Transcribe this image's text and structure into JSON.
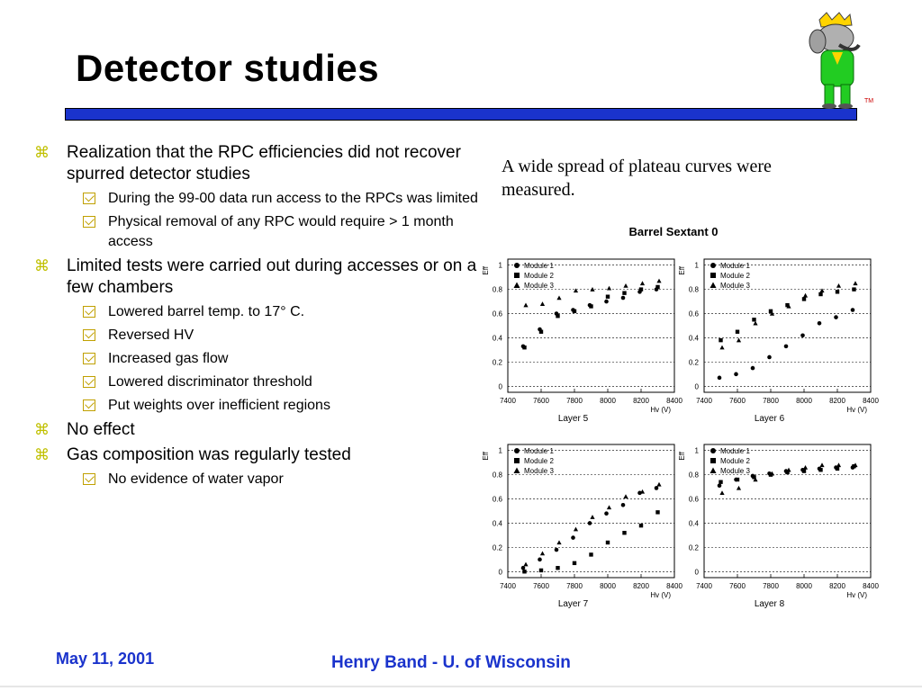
{
  "slide": {
    "title": "Detector studies",
    "caption": "A wide spread of  plateau curves were measured.",
    "footer_date": "May 11, 2001",
    "footer_author": "Henry Band -  U. of Wisconsin",
    "bullet_icon": "z-bullet-icon",
    "sub_bullet_icon": "checkbox-icon",
    "mascot_icon": "babar-elephant-icon"
  },
  "bullets": [
    {
      "text": "Realization that the RPC efficiencies did not recover spurred detector studies",
      "subs": [
        "During the 99-00 data run access to the RPCs was limited",
        "Physical removal of any RPC would require > 1 month access"
      ]
    },
    {
      "text": "Limited tests were carried out during accesses or on a few chambers",
      "subs": [
        "Lowered barrel temp. to 17° C.",
        "Reversed HV",
        "Increased gas flow",
        "Lowered discriminator threshold",
        "Put weights over inefficient regions"
      ]
    },
    {
      "text": "No effect",
      "subs": []
    },
    {
      "text": "Gas composition was regularly tested",
      "subs": [
        "No evidence of water vapor"
      ]
    }
  ],
  "chart_data": {
    "title": "Barrel Sextant 0",
    "type": "scatter",
    "panels": [
      {
        "xlabel": "Layer 5",
        "xunit": "Hv (V)",
        "ylabel": "Eff",
        "xlim": [
          7400,
          8400
        ],
        "ylim": [
          -0.05,
          1.05
        ],
        "x_ticks": [
          "7400",
          "7600",
          "7800",
          "8000",
          "8200",
          "8400"
        ],
        "y_ticks": [
          "0",
          "0.2",
          "0.4",
          "0.6",
          "0.8",
          "1"
        ],
        "series": [
          {
            "name": "Module 1",
            "marker": "circle",
            "x": [
              7500,
              7600,
              7700,
              7800,
              7900,
              8000,
              8100,
              8200,
              8300
            ],
            "y": [
              0.33,
              0.47,
              0.6,
              0.63,
              0.67,
              0.7,
              0.73,
              0.78,
              0.8
            ]
          },
          {
            "name": "Module 2",
            "marker": "square",
            "x": [
              7500,
              7600,
              7700,
              7800,
              7900,
              8000,
              8100,
              8200,
              8300
            ],
            "y": [
              0.32,
              0.45,
              0.58,
              0.62,
              0.66,
              0.74,
              0.77,
              0.8,
              0.82
            ]
          },
          {
            "name": "Module 3",
            "marker": "triangle",
            "x": [
              7500,
              7600,
              7700,
              7800,
              7900,
              8000,
              8100,
              8200,
              8300
            ],
            "y": [
              0.67,
              0.68,
              0.73,
              0.79,
              0.8,
              0.81,
              0.83,
              0.85,
              0.87
            ]
          }
        ]
      },
      {
        "xlabel": "Layer 6",
        "xunit": "Hv (V)",
        "ylabel": "Eff",
        "xlim": [
          7400,
          8400
        ],
        "ylim": [
          -0.05,
          1.05
        ],
        "x_ticks": [
          "7400",
          "7600",
          "7800",
          "8000",
          "8200",
          "8400"
        ],
        "y_ticks": [
          "0",
          "0.2",
          "0.4",
          "0.6",
          "0.8",
          "1"
        ],
        "series": [
          {
            "name": "Module 1",
            "marker": "circle",
            "x": [
              7500,
              7600,
              7700,
              7800,
              7900,
              8000,
              8100,
              8200,
              8300
            ],
            "y": [
              0.07,
              0.1,
              0.15,
              0.24,
              0.33,
              0.42,
              0.52,
              0.57,
              0.63
            ]
          },
          {
            "name": "Module 2",
            "marker": "square",
            "x": [
              7500,
              7600,
              7700,
              7800,
              7900,
              8000,
              8100,
              8200,
              8300
            ],
            "y": [
              0.38,
              0.45,
              0.55,
              0.62,
              0.67,
              0.72,
              0.76,
              0.78,
              0.8
            ]
          },
          {
            "name": "Module 3",
            "marker": "triangle",
            "x": [
              7500,
              7600,
              7700,
              7800,
              7900,
              8000,
              8100,
              8200,
              8300
            ],
            "y": [
              0.32,
              0.38,
              0.52,
              0.6,
              0.66,
              0.75,
              0.79,
              0.83,
              0.85
            ]
          }
        ]
      },
      {
        "xlabel": "Layer 7",
        "xunit": "Hv (V)",
        "ylabel": "Eff",
        "xlim": [
          7400,
          8400
        ],
        "ylim": [
          -0.05,
          1.05
        ],
        "x_ticks": [
          "7400",
          "7600",
          "7800",
          "8000",
          "8200",
          "8400"
        ],
        "y_ticks": [
          "0",
          "0.2",
          "0.4",
          "0.6",
          "0.8",
          "1"
        ],
        "series": [
          {
            "name": "Module 1",
            "marker": "circle",
            "x": [
              7500,
              7600,
              7700,
              7800,
              7900,
              8000,
              8100,
              8200,
              8300
            ],
            "y": [
              0.03,
              0.1,
              0.18,
              0.28,
              0.4,
              0.48,
              0.55,
              0.65,
              0.69
            ]
          },
          {
            "name": "Module 2",
            "marker": "square",
            "x": [
              7500,
              7600,
              7700,
              7800,
              7900,
              8000,
              8100,
              8200,
              8300
            ],
            "y": [
              0.0,
              0.01,
              0.03,
              0.07,
              0.14,
              0.24,
              0.32,
              0.38,
              0.49
            ]
          },
          {
            "name": "Module 3",
            "marker": "triangle",
            "x": [
              7500,
              7600,
              7700,
              7800,
              7900,
              8000,
              8100,
              8200,
              8300
            ],
            "y": [
              0.06,
              0.15,
              0.24,
              0.35,
              0.45,
              0.53,
              0.62,
              0.66,
              0.72
            ]
          }
        ]
      },
      {
        "xlabel": "Layer 8",
        "xunit": "Hv (V)",
        "ylabel": "Eff",
        "xlim": [
          7400,
          8400
        ],
        "ylim": [
          -0.05,
          1.05
        ],
        "x_ticks": [
          "7400",
          "7600",
          "7800",
          "8000",
          "8200",
          "8400"
        ],
        "y_ticks": [
          "0",
          "0.2",
          "0.4",
          "0.6",
          "0.8",
          "1"
        ],
        "series": [
          {
            "name": "Module 1",
            "marker": "circle",
            "x": [
              7500,
              7600,
              7700,
              7800,
              7900,
              8000,
              8100,
              8200,
              8300
            ],
            "y": [
              0.71,
              0.76,
              0.79,
              0.81,
              0.83,
              0.84,
              0.85,
              0.86,
              0.86
            ]
          },
          {
            "name": "Module 2",
            "marker": "square",
            "x": [
              7500,
              7600,
              7700,
              7800,
              7900,
              8000,
              8100,
              8200,
              8300
            ],
            "y": [
              0.74,
              0.76,
              0.78,
              0.8,
              0.82,
              0.83,
              0.84,
              0.85,
              0.87
            ]
          },
          {
            "name": "Module 3",
            "marker": "triangle",
            "x": [
              7500,
              7600,
              7700,
              7800,
              7900,
              8000,
              8100,
              8200,
              8300
            ],
            "y": [
              0.65,
              0.69,
              0.76,
              0.81,
              0.84,
              0.86,
              0.88,
              0.88,
              0.88
            ]
          }
        ]
      }
    ],
    "legend": "top-left",
    "grid": "dashed horizontal"
  }
}
